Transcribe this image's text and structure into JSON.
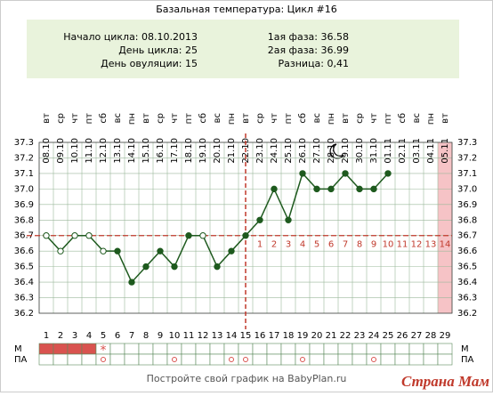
{
  "chart_data": {
    "type": "line",
    "title": "Базальная температура: Цикл #16",
    "info_left": [
      "Начало цикла: 08.10.2013",
      "День цикла: 25",
      "День овуляции: 15"
    ],
    "info_right": [
      "1ая фаза: 36.58",
      "2ая фаза: 36.99",
      "Разница: 0,41"
    ],
    "categories": [
      "1",
      "2",
      "3",
      "4",
      "5",
      "6",
      "7",
      "8",
      "9",
      "10",
      "11",
      "12",
      "13",
      "14",
      "15",
      "16",
      "17",
      "18",
      "19",
      "20",
      "21",
      "22",
      "23",
      "24",
      "25",
      "26",
      "27",
      "28",
      "29"
    ],
    "weekdays": [
      "вт",
      "ср",
      "чт",
      "пт",
      "сб",
      "вс",
      "пн",
      "вт",
      "ср",
      "чт",
      "пт",
      "сб",
      "вс",
      "пн",
      "вт",
      "ср",
      "чт",
      "пт",
      "сб",
      "вс",
      "пн",
      "вт",
      "ср",
      "чт",
      "пт",
      "сб",
      "вс",
      "пн",
      "вт"
    ],
    "dates": [
      "08.10",
      "09.10",
      "10.10",
      "11.10",
      "12.10",
      "13.10",
      "14.10",
      "15.10",
      "16.10",
      "17.10",
      "18.10",
      "19.10",
      "20.10",
      "21.10",
      "22.10",
      "23.10",
      "24.10",
      "25.10",
      "26.10",
      "27.10",
      "28.10",
      "29.10",
      "30.10",
      "31.10",
      "01.11",
      "02.11",
      "03.11",
      "04.11",
      "05.11"
    ],
    "series": [
      {
        "name": "Температура",
        "color": "#1e5a1e",
        "values": [
          36.7,
          36.6,
          36.7,
          36.7,
          36.6,
          36.6,
          36.4,
          36.5,
          36.6,
          36.5,
          36.7,
          36.7,
          36.5,
          36.6,
          36.7,
          36.8,
          37.0,
          36.8,
          37.1,
          37.0,
          37.0,
          37.1,
          37.0,
          37.0,
          37.1,
          null,
          null,
          null,
          null
        ]
      }
    ],
    "hollow_days": [
      1,
      2,
      3,
      4,
      5,
      12
    ],
    "coverline": 36.7,
    "ovulation_day": 15,
    "luteal_labels": [
      "1",
      "2",
      "3",
      "4",
      "5",
      "6",
      "7",
      "8",
      "9",
      "10",
      "11",
      "12",
      "13",
      "14"
    ],
    "highlight_day": 29,
    "ylim": [
      36.2,
      37.3
    ],
    "yticks": [
      36.2,
      36.3,
      36.4,
      36.5,
      36.6,
      36.7,
      36.8,
      36.9,
      {
        "value": 37,
        "label": "37.0"
      },
      37.1,
      37.2,
      37.3
    ],
    "grid": true,
    "row_labels": [
      "М",
      "ПА"
    ],
    "menstruation_days": [
      1,
      2,
      3,
      4
    ],
    "spotting_days": [
      5
    ],
    "spotting_symbol": "*",
    "pa_days": [
      5,
      10,
      14,
      15,
      19,
      24
    ],
    "footer": "Постройте свой график на BabyPlan.ru",
    "watermark": "Страна Мам"
  }
}
